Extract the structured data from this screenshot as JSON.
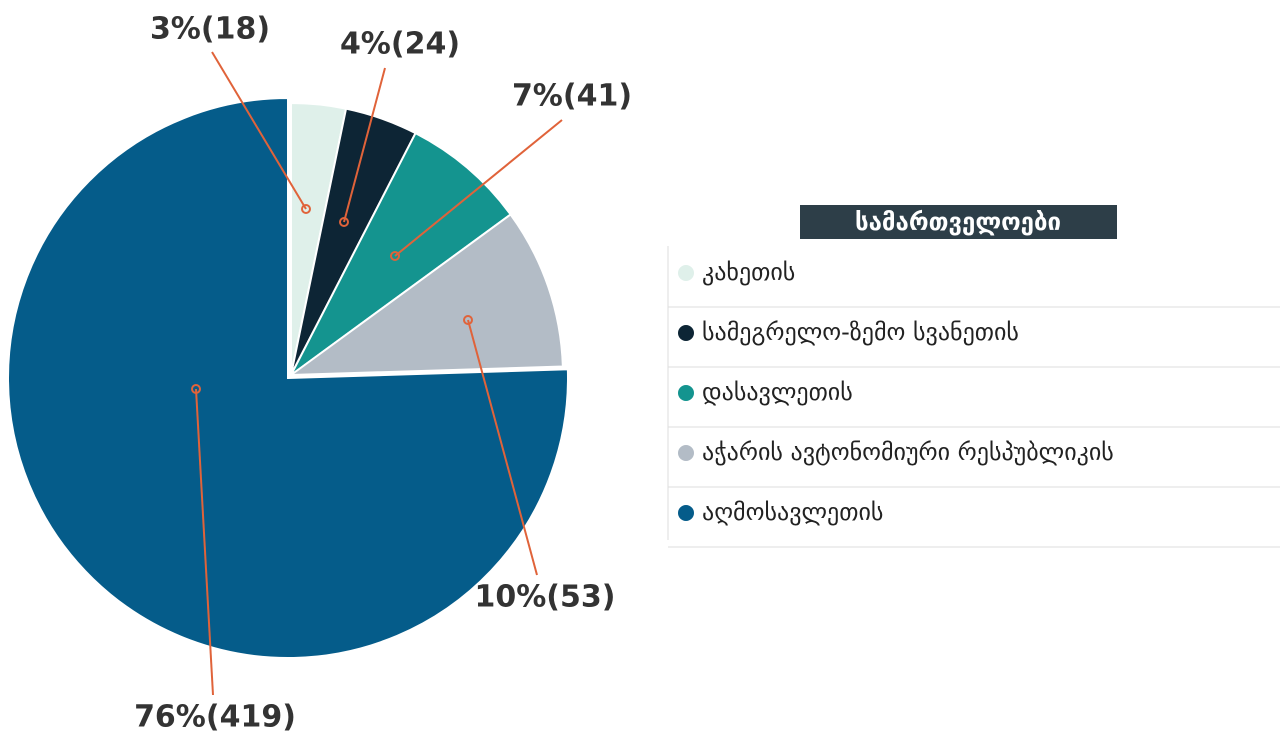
{
  "chart_data": {
    "type": "pie",
    "legend_title": "სამართველოები",
    "categories": [
      "კახეთის",
      "სამეგრელო-ზემო სვანეთის",
      "დასავლეთის",
      "აჭარის ავტონომიური რესპუბლიკის",
      "აღმოსავლეთის"
    ],
    "values": [
      18,
      24,
      41,
      53,
      419
    ],
    "value_labels": [
      "3%(18)",
      "4%(24)",
      "7%(41)",
      "10%(53)",
      "76%(419)"
    ],
    "colors": [
      "#dff0ea",
      "#0d2535",
      "#14948f",
      "#b3bcc6",
      "#055c8a"
    ],
    "legend": "right"
  }
}
